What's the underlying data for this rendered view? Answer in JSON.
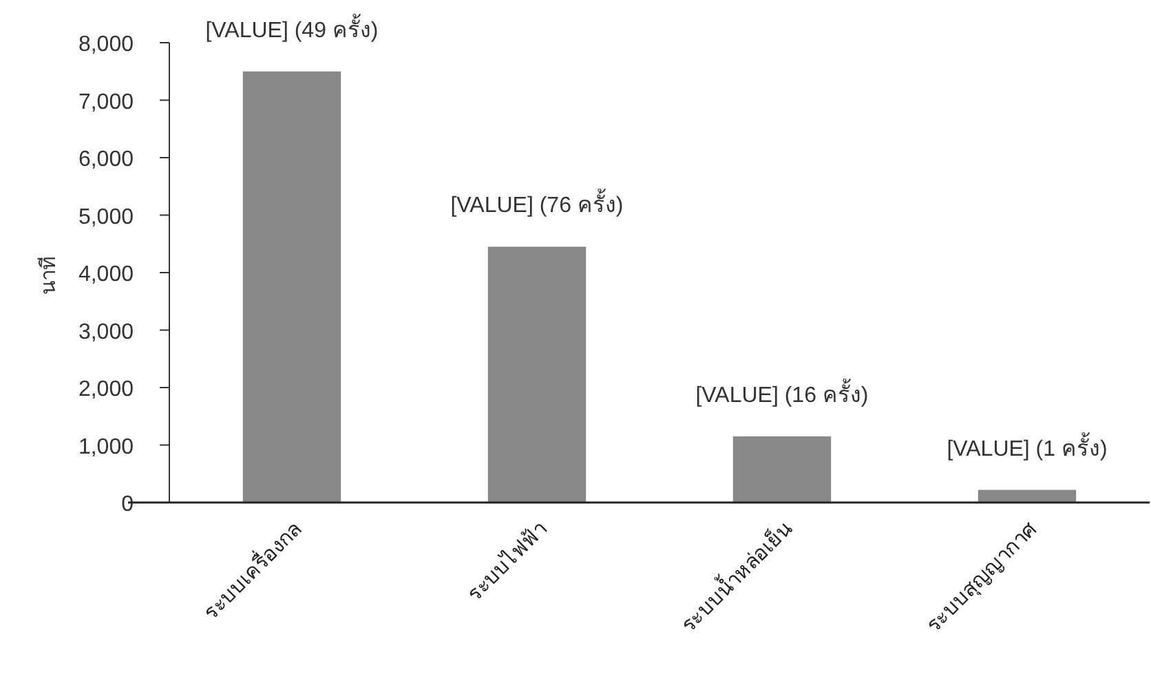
{
  "chart_data": {
    "type": "bar",
    "ylabel": "นาที",
    "categories": [
      "ระบบเครื่องกล",
      "ระบบไฟฟ้า",
      "ระบบน้ำหล่อเย็น",
      "ระบบสุญญากาศ"
    ],
    "values": [
      7500,
      4450,
      1150,
      220
    ],
    "annotations": [
      {
        "text": "[VALUE] (49 ครั้ง)",
        "x": "ระบบเครื่องกล",
        "y": 7500
      },
      {
        "text": "[VALUE] (76 ครั้ง)",
        "x": "ระบบไฟฟ้า",
        "y": 4450
      },
      {
        "text": "[VALUE] (16 ครั้ง)",
        "x": "ระบบน้ำหล่อเย็น",
        "y": 1150
      },
      {
        "text": "[VALUE] (1 ครั้ง)",
        "x": "ระบบสุญญากาศ",
        "y": 220
      }
    ],
    "color": "#888888",
    "ylim": [
      0,
      8000
    ],
    "yticks": [
      {
        "value": 0,
        "label": "0"
      },
      {
        "value": 1000,
        "label": "1,000"
      },
      {
        "value": 2000,
        "label": "2,000"
      },
      {
        "value": 3000,
        "label": "3,000"
      },
      {
        "value": 4000,
        "label": "4,000"
      },
      {
        "value": 5000,
        "label": "5,000"
      },
      {
        "value": 6000,
        "label": "6,000"
      },
      {
        "value": 7000,
        "label": "7,000"
      },
      {
        "value": 8000,
        "label": "8,000"
      }
    ],
    "grid": false
  }
}
